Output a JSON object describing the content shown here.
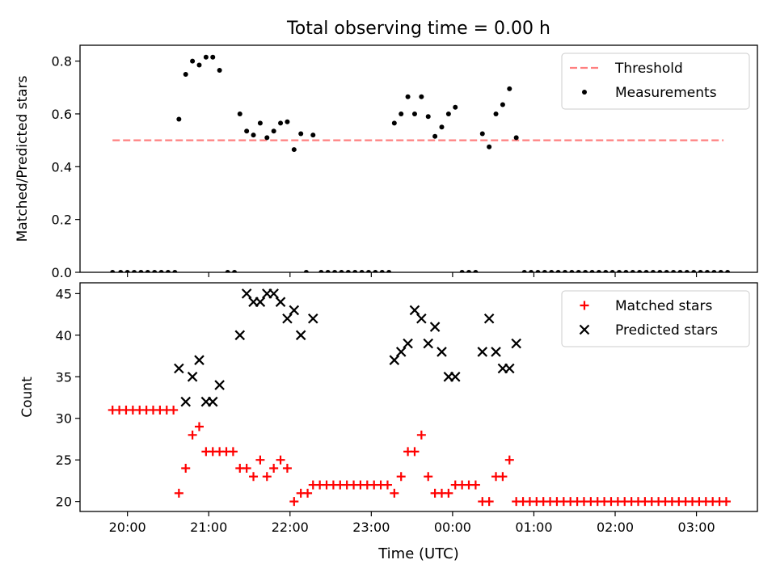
{
  "figure": {
    "title": "Total observing time = 0.00 h",
    "xlabel": "Time (UTC)"
  },
  "chart_data": [
    {
      "type": "scatter",
      "ylabel": "Matched/Predicted stars",
      "ylim": [
        0,
        0.86
      ],
      "yticks": [
        "0.0",
        "0.2",
        "0.4",
        "0.6",
        "0.8"
      ],
      "ytick_values": [
        0,
        0.2,
        0.4,
        0.6,
        0.8
      ],
      "legend": {
        "position": "top-right",
        "entries": [
          "Threshold",
          "Measurements"
        ]
      },
      "threshold": {
        "name": "Threshold",
        "value": 0.5,
        "x_start": "19:49",
        "x_end": "03:20",
        "color": "#ff7f7f",
        "style": "dashed"
      },
      "series": [
        {
          "name": "Measurements",
          "color": "#000000",
          "marker": "dot",
          "points": [
            [
              "19:49",
              0
            ],
            [
              "19:55",
              0
            ],
            [
              "20:00",
              0
            ],
            [
              "20:05",
              0
            ],
            [
              "20:10",
              0
            ],
            [
              "20:15",
              0
            ],
            [
              "20:20",
              0
            ],
            [
              "20:25",
              0
            ],
            [
              "20:30",
              0
            ],
            [
              "20:35",
              0
            ],
            [
              "20:38",
              0.58
            ],
            [
              "20:43",
              0.75
            ],
            [
              "20:48",
              0.8
            ],
            [
              "20:53",
              0.785
            ],
            [
              "20:58",
              0.815
            ],
            [
              "21:03",
              0.815
            ],
            [
              "21:08",
              0.765
            ],
            [
              "21:14",
              0
            ],
            [
              "21:19",
              0
            ],
            [
              "21:23",
              0.6
            ],
            [
              "21:28",
              0.535
            ],
            [
              "21:33",
              0.52
            ],
            [
              "21:38",
              0.565
            ],
            [
              "21:43",
              0.51
            ],
            [
              "21:48",
              0.535
            ],
            [
              "21:53",
              0.565
            ],
            [
              "21:58",
              0.57
            ],
            [
              "22:03",
              0.465
            ],
            [
              "22:08",
              0.525
            ],
            [
              "22:12",
              0
            ],
            [
              "22:17",
              0.52
            ],
            [
              "22:23",
              0
            ],
            [
              "22:28",
              0
            ],
            [
              "22:33",
              0
            ],
            [
              "22:38",
              0
            ],
            [
              "22:43",
              0
            ],
            [
              "22:48",
              0
            ],
            [
              "22:53",
              0
            ],
            [
              "22:58",
              0
            ],
            [
              "23:03",
              0
            ],
            [
              "23:08",
              0
            ],
            [
              "23:13",
              0
            ],
            [
              "23:17",
              0.565
            ],
            [
              "23:22",
              0.6
            ],
            [
              "23:27",
              0.665
            ],
            [
              "23:32",
              0.6
            ],
            [
              "23:37",
              0.665
            ],
            [
              "23:42",
              0.59
            ],
            [
              "23:47",
              0.515
            ],
            [
              "23:52",
              0.55
            ],
            [
              "23:57",
              0.6
            ],
            [
              "00:02",
              0.625
            ],
            [
              "00:07",
              0
            ],
            [
              "00:12",
              0
            ],
            [
              "00:17",
              0
            ],
            [
              "00:22",
              0.525
            ],
            [
              "00:27",
              0.475
            ],
            [
              "00:32",
              0.6
            ],
            [
              "00:37",
              0.635
            ],
            [
              "00:42",
              0.695
            ],
            [
              "00:47",
              0.51
            ],
            [
              "00:53",
              0
            ],
            [
              "00:58",
              0
            ],
            [
              "01:03",
              0
            ],
            [
              "01:08",
              0
            ],
            [
              "01:13",
              0
            ],
            [
              "01:18",
              0
            ],
            [
              "01:23",
              0
            ],
            [
              "01:28",
              0
            ],
            [
              "01:33",
              0
            ],
            [
              "01:38",
              0
            ],
            [
              "01:43",
              0
            ],
            [
              "01:48",
              0
            ],
            [
              "01:53",
              0
            ],
            [
              "01:58",
              0
            ],
            [
              "02:03",
              0
            ],
            [
              "02:08",
              0
            ],
            [
              "02:13",
              0
            ],
            [
              "02:18",
              0
            ],
            [
              "02:23",
              0
            ],
            [
              "02:28",
              0
            ],
            [
              "02:33",
              0
            ],
            [
              "02:38",
              0
            ],
            [
              "02:43",
              0
            ],
            [
              "02:48",
              0
            ],
            [
              "02:53",
              0
            ],
            [
              "02:58",
              0
            ],
            [
              "03:03",
              0
            ],
            [
              "03:08",
              0
            ],
            [
              "03:13",
              0
            ],
            [
              "03:18",
              0
            ],
            [
              "03:23",
              0
            ]
          ]
        }
      ]
    },
    {
      "type": "scatter",
      "ylabel": "Count",
      "ylim": [
        18.8,
        46.3
      ],
      "yticks": [
        "20",
        "25",
        "30",
        "35",
        "40",
        "45"
      ],
      "ytick_values": [
        20,
        25,
        30,
        35,
        40,
        45
      ],
      "xlim": [
        "19:25",
        "03:45"
      ],
      "xticks": [
        "20:00",
        "21:00",
        "22:00",
        "23:00",
        "00:00",
        "01:00",
        "02:00",
        "03:00"
      ],
      "legend": {
        "position": "top-right",
        "entries": [
          "Matched stars",
          "Predicted stars"
        ]
      },
      "series": [
        {
          "name": "Matched stars",
          "color": "#ff0000",
          "marker": "plus",
          "points": [
            [
              "19:49",
              31
            ],
            [
              "19:54",
              31
            ],
            [
              "19:59",
              31
            ],
            [
              "20:04",
              31
            ],
            [
              "20:09",
              31
            ],
            [
              "20:14",
              31
            ],
            [
              "20:19",
              31
            ],
            [
              "20:24",
              31
            ],
            [
              "20:29",
              31
            ],
            [
              "20:34",
              31
            ],
            [
              "20:38",
              21
            ],
            [
              "20:43",
              24
            ],
            [
              "20:48",
              28
            ],
            [
              "20:53",
              29
            ],
            [
              "20:58",
              26
            ],
            [
              "21:03",
              26
            ],
            [
              "21:08",
              26
            ],
            [
              "21:13",
              26
            ],
            [
              "21:18",
              26
            ],
            [
              "21:23",
              24
            ],
            [
              "21:28",
              24
            ],
            [
              "21:33",
              23
            ],
            [
              "21:38",
              25
            ],
            [
              "21:43",
              23
            ],
            [
              "21:48",
              24
            ],
            [
              "21:53",
              25
            ],
            [
              "21:58",
              24
            ],
            [
              "22:03",
              20
            ],
            [
              "22:08",
              21
            ],
            [
              "22:13",
              21
            ],
            [
              "22:17",
              22
            ],
            [
              "22:22",
              22
            ],
            [
              "22:27",
              22
            ],
            [
              "22:32",
              22
            ],
            [
              "22:37",
              22
            ],
            [
              "22:42",
              22
            ],
            [
              "22:47",
              22
            ],
            [
              "22:52",
              22
            ],
            [
              "22:57",
              22
            ],
            [
              "23:02",
              22
            ],
            [
              "23:07",
              22
            ],
            [
              "23:12",
              22
            ],
            [
              "23:17",
              21
            ],
            [
              "23:22",
              23
            ],
            [
              "23:27",
              26
            ],
            [
              "23:32",
              26
            ],
            [
              "23:37",
              28
            ],
            [
              "23:42",
              23
            ],
            [
              "23:47",
              21
            ],
            [
              "23:52",
              21
            ],
            [
              "23:57",
              21
            ],
            [
              "00:02",
              22
            ],
            [
              "00:07",
              22
            ],
            [
              "00:12",
              22
            ],
            [
              "00:17",
              22
            ],
            [
              "00:22",
              20
            ],
            [
              "00:27",
              20
            ],
            [
              "00:32",
              23
            ],
            [
              "00:37",
              23
            ],
            [
              "00:42",
              25
            ],
            [
              "00:47",
              20
            ],
            [
              "00:52",
              20
            ],
            [
              "00:57",
              20
            ],
            [
              "01:02",
              20
            ],
            [
              "01:07",
              20
            ],
            [
              "01:12",
              20
            ],
            [
              "01:17",
              20
            ],
            [
              "01:22",
              20
            ],
            [
              "01:27",
              20
            ],
            [
              "01:32",
              20
            ],
            [
              "01:37",
              20
            ],
            [
              "01:42",
              20
            ],
            [
              "01:47",
              20
            ],
            [
              "01:52",
              20
            ],
            [
              "01:57",
              20
            ],
            [
              "02:02",
              20
            ],
            [
              "02:07",
              20
            ],
            [
              "02:12",
              20
            ],
            [
              "02:17",
              20
            ],
            [
              "02:22",
              20
            ],
            [
              "02:27",
              20
            ],
            [
              "02:32",
              20
            ],
            [
              "02:37",
              20
            ],
            [
              "02:42",
              20
            ],
            [
              "02:47",
              20
            ],
            [
              "02:52",
              20
            ],
            [
              "02:57",
              20
            ],
            [
              "03:02",
              20
            ],
            [
              "03:07",
              20
            ],
            [
              "03:12",
              20
            ],
            [
              "03:17",
              20
            ],
            [
              "03:22",
              20
            ]
          ]
        },
        {
          "name": "Predicted stars",
          "color": "#000000",
          "marker": "x",
          "points": [
            [
              "20:38",
              36
            ],
            [
              "20:43",
              32
            ],
            [
              "20:48",
              35
            ],
            [
              "20:53",
              37
            ],
            [
              "20:58",
              32
            ],
            [
              "21:03",
              32
            ],
            [
              "21:08",
              34
            ],
            [
              "21:23",
              40
            ],
            [
              "21:28",
              45
            ],
            [
              "21:33",
              44
            ],
            [
              "21:38",
              44
            ],
            [
              "21:43",
              45
            ],
            [
              "21:48",
              45
            ],
            [
              "21:53",
              44
            ],
            [
              "21:58",
              42
            ],
            [
              "22:03",
              43
            ],
            [
              "22:08",
              40
            ],
            [
              "22:17",
              42
            ],
            [
              "23:17",
              37
            ],
            [
              "23:22",
              38
            ],
            [
              "23:27",
              39
            ],
            [
              "23:32",
              43
            ],
            [
              "23:37",
              42
            ],
            [
              "23:42",
              39
            ],
            [
              "23:47",
              41
            ],
            [
              "23:52",
              38
            ],
            [
              "23:57",
              35
            ],
            [
              "00:02",
              35
            ],
            [
              "00:22",
              38
            ],
            [
              "00:27",
              42
            ],
            [
              "00:32",
              38
            ],
            [
              "00:37",
              36
            ],
            [
              "00:42",
              36
            ],
            [
              "00:47",
              39
            ]
          ]
        }
      ]
    }
  ]
}
